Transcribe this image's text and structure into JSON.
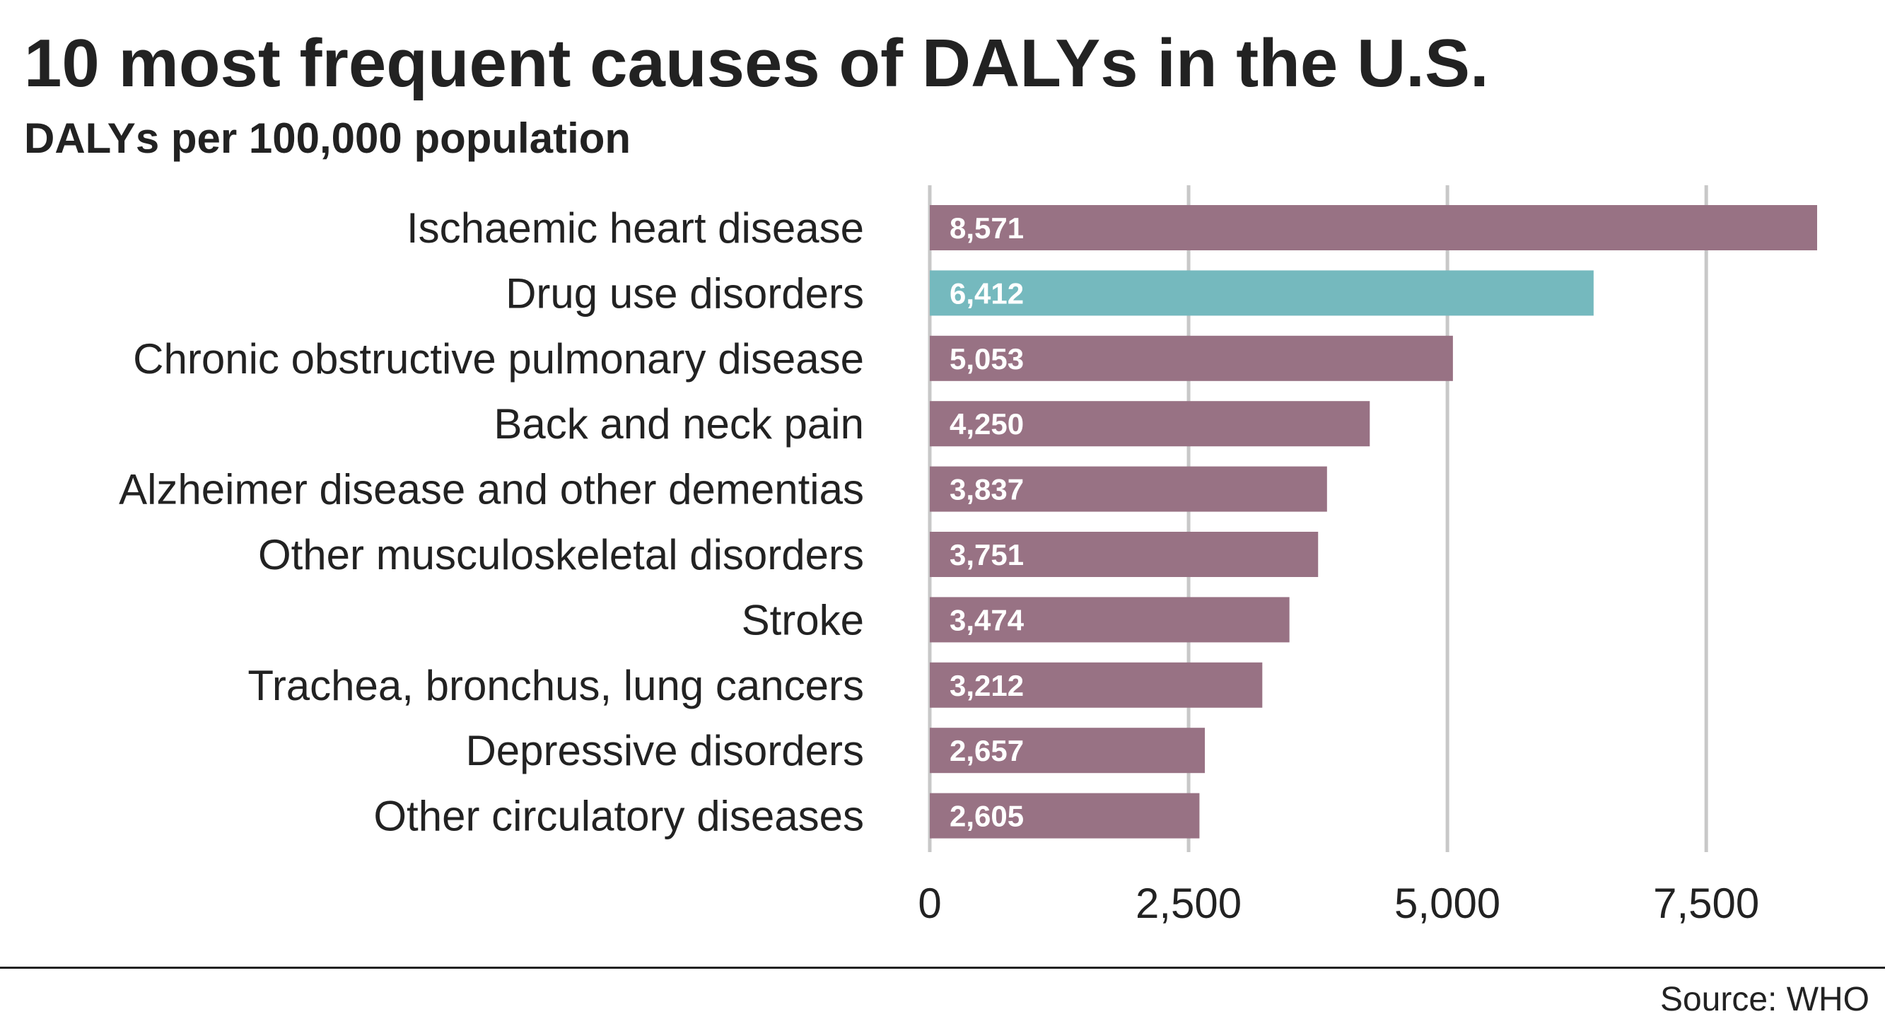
{
  "title": "10 most frequent causes of DALYs in the U.S.",
  "subtitle": "DALYs per 100,000 population",
  "source": "Source: WHO",
  "colors": {
    "bar": "#987284",
    "highlight": "#75b9be",
    "grid": "#c8c8c8",
    "text": "#222222",
    "bar_label": "#ffffff"
  },
  "chart_data": {
    "type": "bar",
    "orientation": "horizontal",
    "categories": [
      "Ischaemic heart disease",
      "Drug use disorders",
      "Chronic obstructive pulmonary disease",
      "Back and neck pain",
      "Alzheimer disease and other dementias",
      "Other musculoskeletal disorders",
      "Stroke",
      "Trachea, bronchus, lung cancers",
      "Depressive disorders",
      "Other circulatory diseases"
    ],
    "values": [
      8571,
      6412,
      5053,
      4250,
      3837,
      3751,
      3474,
      3212,
      2657,
      2605
    ],
    "value_labels": [
      "8,571",
      "6,412",
      "5,053",
      "4,250",
      "3,837",
      "3,751",
      "3,474",
      "3,212",
      "2,657",
      "2,605"
    ],
    "highlighted_category": "Drug use disorders",
    "xlim": [
      0,
      8571
    ],
    "xticks": [
      0,
      2500,
      5000,
      7500
    ],
    "xtick_labels": [
      "0",
      "2,500",
      "5,000",
      "7,500"
    ],
    "grid": true,
    "legend": "none"
  }
}
